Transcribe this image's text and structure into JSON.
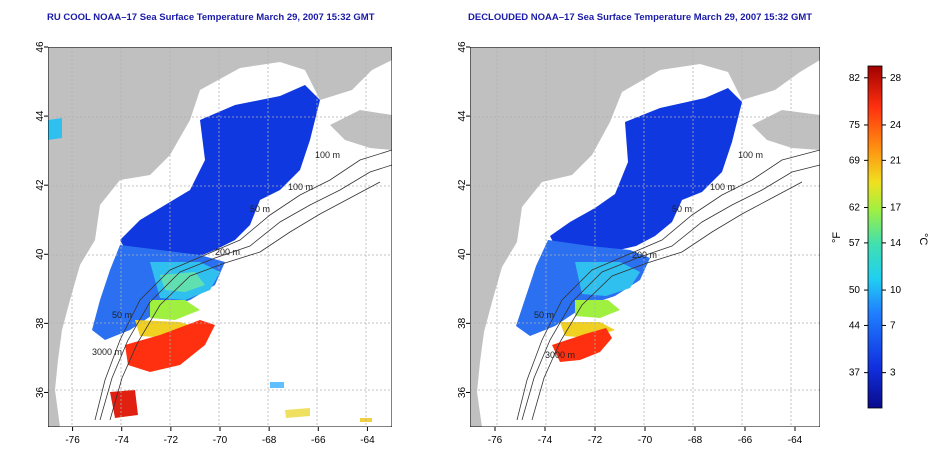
{
  "panels": [
    {
      "title": "RU COOL NOAA–17 Sea Surface Temperature March 29, 2007 15:32 GMT",
      "variant": "raw"
    },
    {
      "title": "DECLOUDED NOAA–17 Sea Surface Temperature March 29, 2007 15:32 GMT",
      "variant": "declouded"
    }
  ],
  "axes": {
    "lon_ticks": [
      "-76",
      "-74",
      "-72",
      "-70",
      "-68",
      "-66",
      "-64"
    ],
    "lat_ticks": [
      "36",
      "38",
      "40",
      "42",
      "44",
      "46"
    ],
    "lon_range": [
      -77,
      -63
    ],
    "lat_range": [
      35,
      46
    ]
  },
  "isobath_labels": [
    "100 m",
    "100 m",
    "50 m",
    "50 m",
    "200 m",
    "3000 m"
  ],
  "colorbar": {
    "f_label": "°F",
    "c_label": "°C",
    "f_ticks": [
      "82",
      "75",
      "69",
      "62",
      "57",
      "50",
      "44",
      "37"
    ],
    "c_ticks": [
      "28",
      "24",
      "21",
      "17",
      "14",
      "10",
      "7",
      "3"
    ],
    "c_values": [
      28,
      24,
      21,
      17,
      14,
      10,
      7,
      3
    ],
    "range_c": [
      0,
      29
    ]
  },
  "colors": {
    "land": "#c0c0c0",
    "title": "#1a1aa8",
    "cold": "#0a2fd0",
    "warm": "#e02010"
  }
}
